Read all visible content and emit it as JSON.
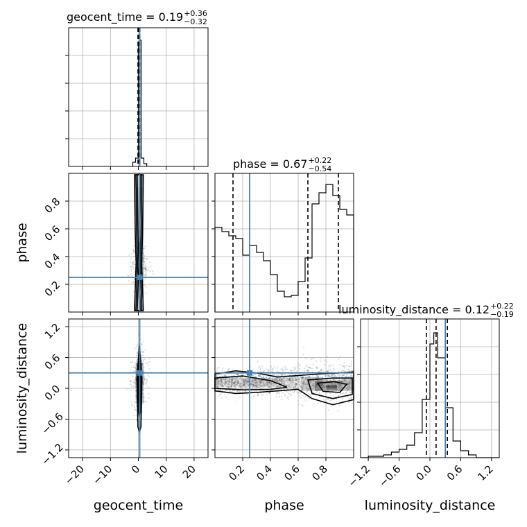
{
  "chart_data": {
    "type": "corner",
    "parameters": [
      "geocent_time",
      "phase",
      "luminosity_distance"
    ],
    "axis_labels": {
      "x": [
        "geocent_time",
        "phase",
        "luminosity_distance"
      ],
      "y": [
        "phase",
        "luminosity_distance"
      ]
    },
    "titles": [
      {
        "parameter": "geocent_time",
        "text": "geocent_time = 0.19",
        "plus": "+0.36",
        "minus": "−0.32"
      },
      {
        "parameter": "phase",
        "text": "phase = 0.67",
        "plus": "+0.22",
        "minus": "−0.54"
      },
      {
        "parameter": "luminosity_distance",
        "text": "luminosity_distance = 0.12",
        "plus": "+0.22",
        "minus": "−0.19"
      }
    ],
    "ranges": {
      "geocent_time": [
        -25,
        25
      ],
      "phase": [
        0.0,
        1.0
      ],
      "luminosity_distance": [
        -1.35,
        1.35
      ]
    },
    "ticks": {
      "geocent_time": [
        -20,
        -10,
        0,
        10,
        20
      ],
      "phase": [
        0.2,
        0.4,
        0.6,
        0.8
      ],
      "luminosity_distance": [
        -1.2,
        -0.6,
        0.0,
        0.6,
        1.2
      ]
    },
    "tick_labels": {
      "geocent_time": [
        "−20",
        "−10",
        "0",
        "10",
        "20"
      ],
      "phase": [
        "0.2",
        "0.4",
        "0.6",
        "0.8"
      ],
      "luminosity_distance": [
        "−1.2",
        "−0.6",
        "0.0",
        "0.6",
        "1.2"
      ]
    },
    "truths": {
      "geocent_time": 0.5,
      "phase": 0.25,
      "luminosity_distance": 0.3
    },
    "quantiles": {
      "geocent_time": [
        -0.13,
        0.19,
        0.55
      ],
      "phase": [
        0.13,
        0.67,
        0.89
      ],
      "luminosity_distance": [
        -0.07,
        0.12,
        0.34
      ]
    },
    "histograms": {
      "geocent_time": {
        "edges": [
          -25,
          -22.5,
          -20,
          -17.5,
          -15,
          -12.5,
          -10,
          -7.5,
          -5,
          -2.5,
          0,
          2.5,
          5,
          7.5,
          10,
          12.5,
          15,
          17.5,
          20,
          22.5,
          25
        ],
        "counts": [
          0,
          0,
          0,
          0,
          0,
          0,
          0,
          0,
          0,
          0.03,
          0.9,
          0.06,
          0.01,
          0,
          0,
          0,
          0,
          0,
          0,
          0
        ],
        "fine": {
          "edges": [
            -2.0,
            -1.0,
            0.0,
            0.5,
            1.0,
            2.0,
            3.0
          ],
          "counts": [
            0.03,
            0.06,
            0.88,
            0.91,
            0.06,
            0.02
          ]
        }
      },
      "phase": {
        "edges": [
          0.0,
          0.05,
          0.1,
          0.15,
          0.2,
          0.25,
          0.3,
          0.35,
          0.4,
          0.45,
          0.5,
          0.55,
          0.6,
          0.65,
          0.7,
          0.75,
          0.8,
          0.85,
          0.9,
          0.95,
          1.0
        ],
        "counts": [
          0.61,
          0.58,
          0.55,
          0.53,
          0.41,
          0.48,
          0.43,
          0.37,
          0.27,
          0.15,
          0.11,
          0.12,
          0.22,
          0.39,
          0.78,
          0.86,
          0.92,
          0.84,
          0.74,
          0.7
        ]
      },
      "luminosity_distance": {
        "edges": [
          -1.35,
          -1.2,
          -1.05,
          -0.9,
          -0.75,
          -0.6,
          -0.45,
          -0.3,
          -0.15,
          0.0,
          0.075,
          0.15,
          0.3,
          0.45,
          0.6,
          0.75,
          0.9,
          1.05,
          1.2,
          1.35
        ],
        "counts": [
          0.0,
          0.01,
          0.01,
          0.02,
          0.04,
          0.06,
          0.09,
          0.18,
          0.42,
          0.82,
          0.9,
          0.72,
          0.36,
          0.12,
          0.05,
          0.02,
          0.0,
          0.0,
          0.0
        ],
        "ymax": 1.0
      }
    },
    "histogram_ymax": {
      "geocent_time": 1.0,
      "phase": 1.0
    },
    "grid": true,
    "truth_color": "#4682b4",
    "contour_levels": [
      0.3,
      0.6,
      0.9
    ]
  }
}
